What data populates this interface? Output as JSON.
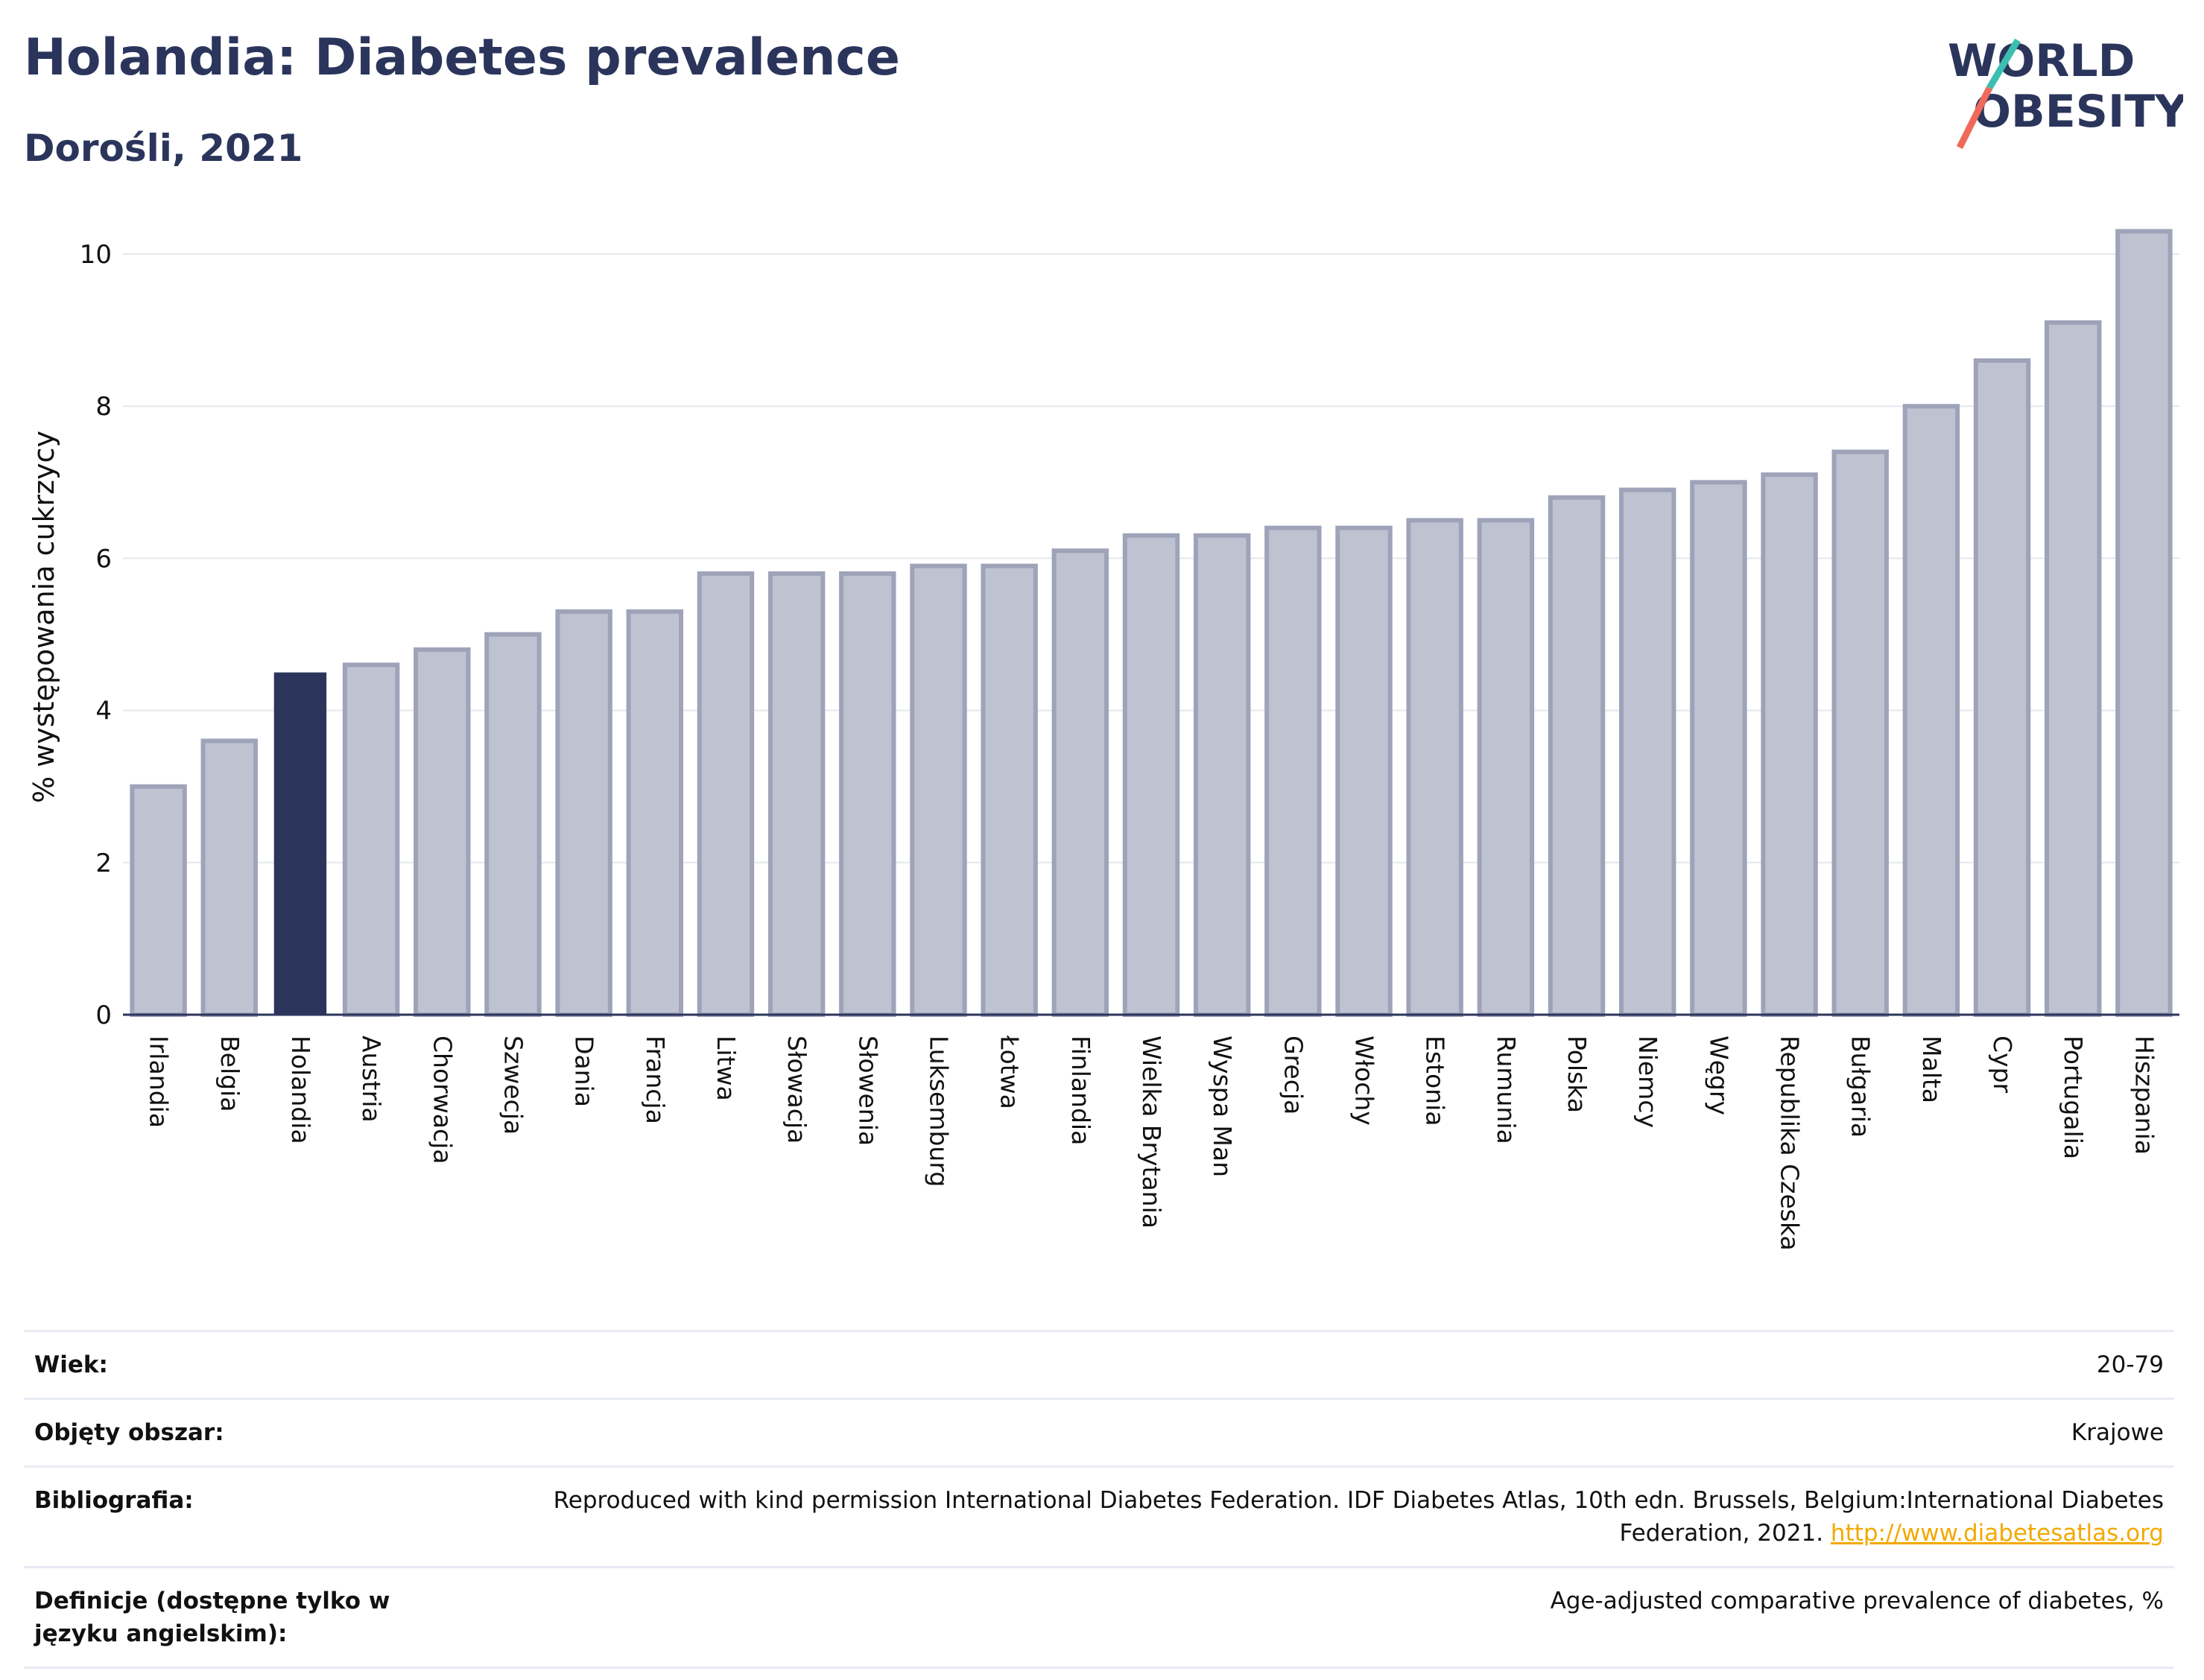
{
  "header": {
    "title": "Holandia: Diabetes prevalence",
    "subtitle": "Dorośli, 2021",
    "logo_text": "WORLD OBESITY"
  },
  "colors": {
    "highlight": "#2b355c",
    "bar_fill": "#bfc2d0",
    "bar_stroke": "#9ea3b9",
    "grid": "#e6e7ee",
    "logo_teal": "#3bbfb0",
    "logo_coral": "#ef6a5a",
    "link": "#f2a900"
  },
  "chart_data": {
    "type": "bar",
    "title": "Holandia: Diabetes prevalence",
    "subtitle": "Dorośli, 2021",
    "xlabel": "",
    "ylabel": "% występowania cukrzycy",
    "ylim": [
      0,
      10.5
    ],
    "yticks": [
      0,
      2,
      4,
      6,
      8,
      10
    ],
    "grid": true,
    "highlight": "Holandia",
    "categories": [
      "Irlandia",
      "Belgia",
      "Holandia",
      "Austria",
      "Chorwacja",
      "Szwecja",
      "Dania",
      "Francja",
      "Litwa",
      "Słowacja",
      "Słowenia",
      "Luksemburg",
      "Łotwa",
      "Finlandia",
      "Wielka Brytania",
      "Wyspa Man",
      "Grecja",
      "Włochy",
      "Estonia",
      "Rumunia",
      "Polska",
      "Niemcy",
      "Węgry",
      "Republika Czeska",
      "Bułgaria",
      "Malta",
      "Cypr",
      "Portugalia",
      "Hiszpania"
    ],
    "values": [
      3.0,
      3.6,
      4.5,
      4.6,
      4.8,
      5.0,
      5.3,
      5.3,
      5.8,
      5.8,
      5.8,
      5.9,
      5.9,
      6.1,
      6.3,
      6.3,
      6.4,
      6.4,
      6.5,
      6.5,
      6.8,
      6.9,
      7.0,
      7.1,
      7.4,
      8.0,
      8.6,
      9.1,
      10.3
    ]
  },
  "meta": [
    {
      "key": "Wiek:",
      "value": "20-79"
    },
    {
      "key": "Objęty obszar:",
      "value": "Krajowe"
    },
    {
      "key": "Bibliografia:",
      "value": "Reproduced with kind permission International Diabetes Federation.  IDF Diabetes Atlas, 10th edn. Brussels, Belgium:International Diabetes Federation, 2021.",
      "link": "http://www.diabetesatlas.org"
    },
    {
      "key": "Definicje (dostępne tylko w języku angielskim):",
      "value": "Age-adjusted comparative prevalence of diabetes, %"
    }
  ]
}
